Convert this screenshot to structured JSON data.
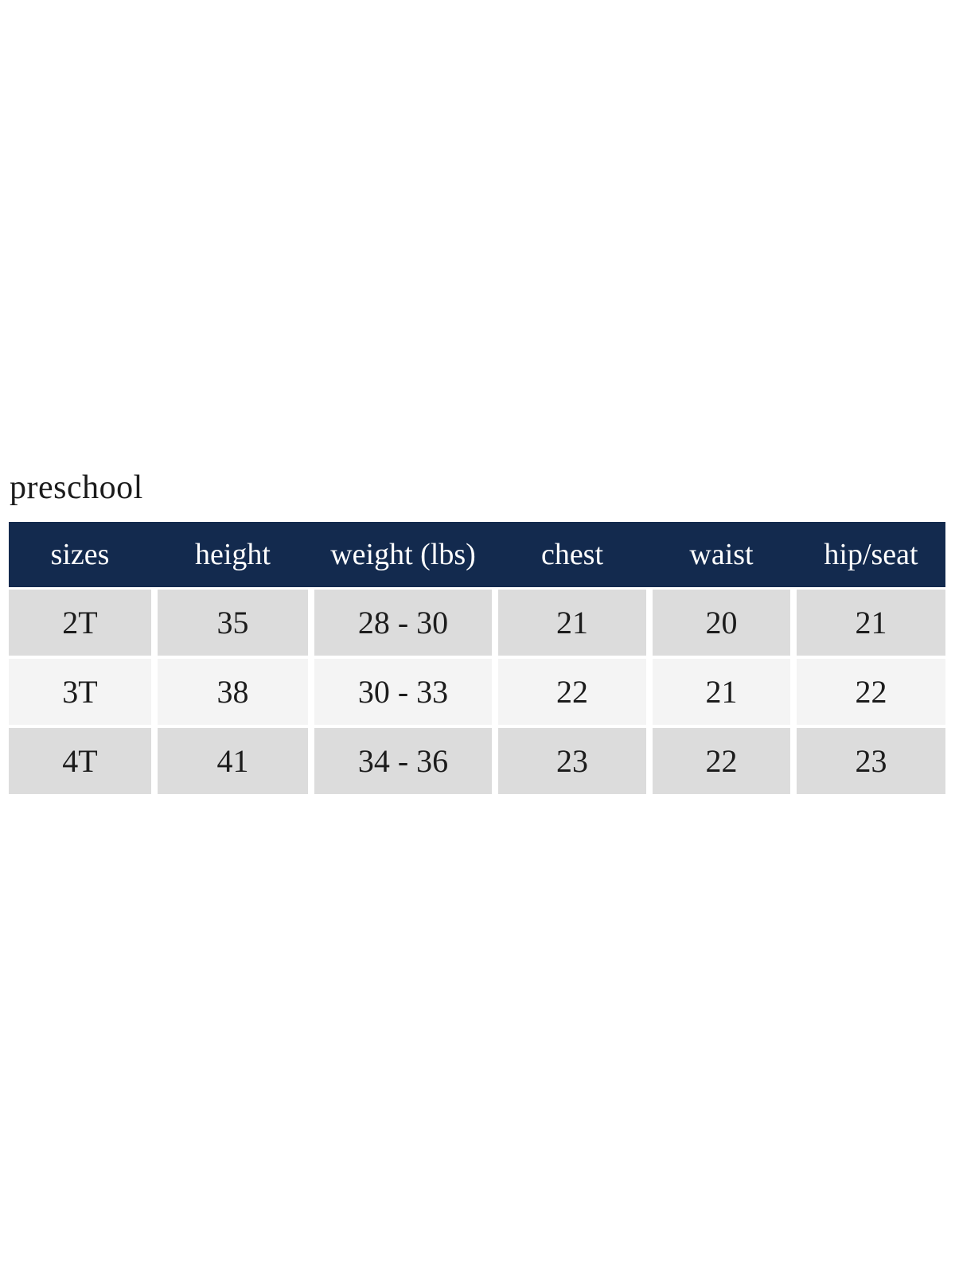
{
  "title": "preschool",
  "table": {
    "columns": [
      "sizes",
      "height",
      "weight (lbs)",
      "chest",
      "waist",
      "hip/seat"
    ],
    "rows": [
      [
        "2T",
        "35",
        "28 - 30",
        "21",
        "20",
        "21"
      ],
      [
        "3T",
        "38",
        "30 - 33",
        "22",
        "21",
        "22"
      ],
      [
        "4T",
        "41",
        "34 - 36",
        "23",
        "22",
        "23"
      ]
    ]
  },
  "colors": {
    "header_bg": "#132a4e",
    "header_text": "#ffffff",
    "row_bg": "#dcdcdc",
    "row_alt_bg": "#f4f4f4",
    "body_text": "#1c1c1c",
    "page_bg": "#ffffff"
  }
}
